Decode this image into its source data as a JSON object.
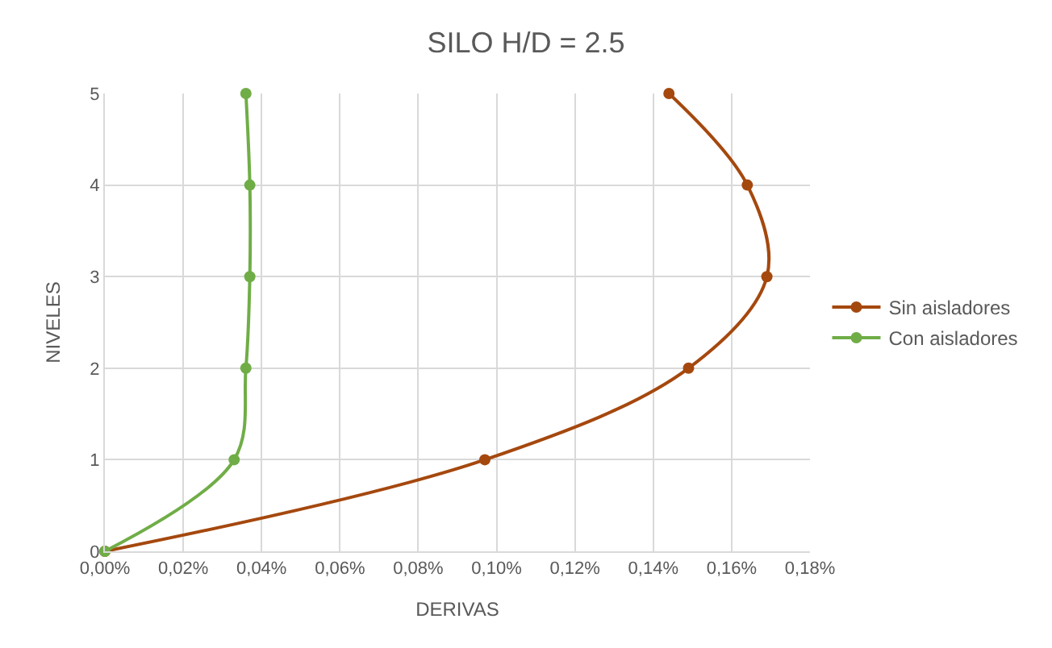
{
  "chart_data": {
    "type": "line",
    "title": "SILO H/D = 2.5",
    "xlabel": "DERIVAS",
    "ylabel": "NIVELES",
    "series": [
      {
        "name": "Sin aisladores",
        "color": "#a5480e",
        "x": [
          0,
          0.097,
          0.149,
          0.169,
          0.164,
          0.144
        ],
        "values": [
          0,
          1,
          2,
          3,
          4,
          5
        ]
      },
      {
        "name": "Con aisladores",
        "color": "#70ad47",
        "x": [
          0,
          0.033,
          0.036,
          0.037,
          0.037,
          0.036
        ],
        "values": [
          0,
          1,
          2,
          3,
          4,
          5
        ]
      }
    ],
    "xlim": [
      0,
      0.18
    ],
    "ylim": [
      0,
      5
    ],
    "xticks": [
      {
        "value": 0,
        "label": "0,00%"
      },
      {
        "value": 0.02,
        "label": "0,02%"
      },
      {
        "value": 0.04,
        "label": "0,04%"
      },
      {
        "value": 0.06,
        "label": "0,06%"
      },
      {
        "value": 0.08,
        "label": "0,08%"
      },
      {
        "value": 0.1,
        "label": "0,10%"
      },
      {
        "value": 0.12,
        "label": "0,12%"
      },
      {
        "value": 0.14,
        "label": "0,14%"
      },
      {
        "value": 0.16,
        "label": "0,16%"
      },
      {
        "value": 0.18,
        "label": "0,18%"
      }
    ],
    "yticks": [
      0,
      1,
      2,
      3,
      4,
      5
    ],
    "grid": true,
    "legend": "right",
    "marker": "circle",
    "line_style": "solid"
  }
}
